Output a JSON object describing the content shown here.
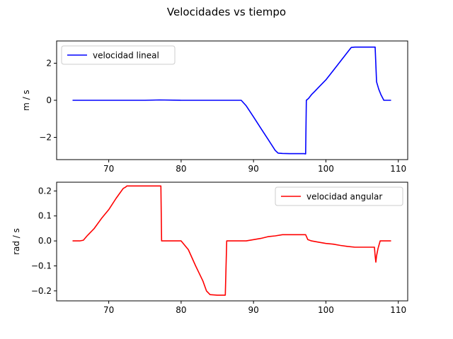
{
  "figure": {
    "suptitle": "Velocidades vs tiempo"
  },
  "chart_data": [
    {
      "type": "line",
      "title": "",
      "xlabel": "",
      "ylabel": "m / s",
      "xlim": [
        62.8,
        111.3
      ],
      "ylim": [
        -3.2,
        3.2
      ],
      "xticks": [
        70,
        80,
        90,
        100,
        110
      ],
      "yticks": [
        -2,
        0,
        2
      ],
      "ytick_labels": [
        "−2",
        "0",
        "2"
      ],
      "grid": false,
      "legend": "upper left",
      "series": [
        {
          "name": "velocidad lineal",
          "color": "#0000ff",
          "x": [
            65,
            70,
            75,
            77,
            80,
            85,
            88.3,
            89,
            90,
            91,
            92,
            93,
            93.4,
            94,
            95,
            96,
            97,
            97.2,
            97.3,
            97.6,
            98,
            98.5,
            99,
            100,
            101,
            102,
            103,
            103.5,
            104,
            105,
            106,
            106.8,
            107,
            107.3,
            107.6,
            108,
            109
          ],
          "y": [
            0,
            0,
            0,
            0.02,
            0,
            0,
            0,
            -0.3,
            -0.9,
            -1.5,
            -2.1,
            -2.7,
            -2.85,
            -2.87,
            -2.88,
            -2.88,
            -2.88,
            -2.89,
            0,
            0.1,
            0.3,
            0.5,
            0.7,
            1.1,
            1.6,
            2.1,
            2.6,
            2.85,
            2.87,
            2.87,
            2.87,
            2.87,
            1.0,
            0.6,
            0.3,
            0,
            0
          ]
        }
      ]
    },
    {
      "type": "line",
      "title": "",
      "xlabel": "",
      "ylabel": "rad / s",
      "xlim": [
        62.8,
        111.3
      ],
      "ylim": [
        -0.24,
        0.235
      ],
      "xticks": [
        70,
        80,
        90,
        100,
        110
      ],
      "yticks": [
        -0.2,
        -0.1,
        0.0,
        0.1,
        0.2
      ],
      "ytick_labels": [
        "−0.2",
        "−0.1",
        "0.0",
        "0.1",
        "0.2"
      ],
      "grid": false,
      "legend": "upper right",
      "series": [
        {
          "name": "velocidad angular",
          "color": "#ff0000",
          "x": [
            65,
            66,
            66.5,
            67,
            68,
            69,
            70,
            71,
            71.5,
            72,
            72.3,
            72.5,
            73,
            75,
            77,
            77.2,
            77.3,
            77.6,
            78,
            79,
            80,
            81,
            82,
            83,
            83.5,
            84,
            85,
            85.5,
            86,
            86.1,
            86.3,
            87,
            88,
            89,
            90,
            91,
            92,
            93,
            94,
            95,
            96,
            97,
            97.2,
            97.5,
            98,
            99,
            100,
            101,
            102,
            103,
            104,
            105,
            106,
            106.7,
            106.8,
            106.9,
            107,
            107.2,
            107.5,
            108,
            109
          ],
          "y": [
            0,
            0,
            0.003,
            0.02,
            0.05,
            0.09,
            0.125,
            0.17,
            0.19,
            0.21,
            0.215,
            0.22,
            0.22,
            0.22,
            0.22,
            0.22,
            0.0,
            0,
            0,
            0,
            0,
            -0.035,
            -0.1,
            -0.16,
            -0.2,
            -0.215,
            -0.217,
            -0.217,
            -0.217,
            -0.217,
            0,
            0,
            0,
            0,
            0.005,
            0.01,
            0.017,
            0.02,
            0.025,
            0.025,
            0.025,
            0.025,
            0.025,
            0.005,
            0,
            -0.005,
            -0.01,
            -0.013,
            -0.018,
            -0.022,
            -0.025,
            -0.025,
            -0.025,
            -0.025,
            -0.06,
            -0.085,
            -0.06,
            -0.03,
            0,
            0,
            0
          ]
        }
      ]
    }
  ]
}
